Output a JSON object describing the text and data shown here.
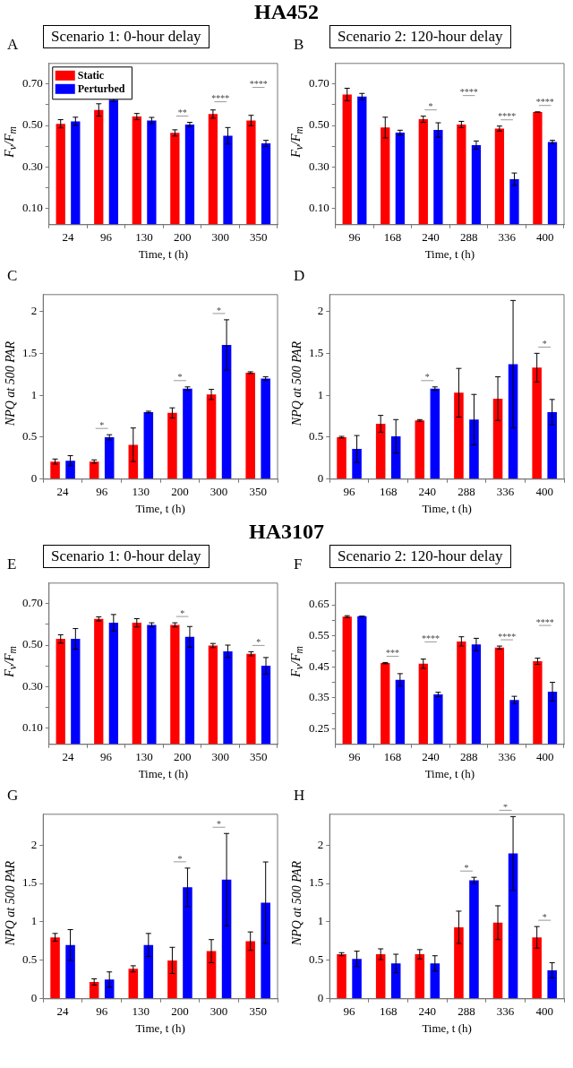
{
  "chart_data": [
    {
      "type": "bar",
      "subtitle": "HA452",
      "title": "Scenario 1: 0-hour delay",
      "xlabel": "Time, t (h)",
      "ylabel": "F$_{v}$/F$_{m}$",
      "legend": "top left",
      "categories": [
        "24",
        "96",
        "130",
        "200",
        "300",
        "350"
      ],
      "series": [
        {
          "name": "Static",
          "color": "#ff0000",
          "values": [
            0.508,
            0.575,
            0.543,
            0.464,
            0.555,
            0.524
          ],
          "errors": [
            0.02,
            0.03,
            0.015,
            0.015,
            0.02,
            0.025
          ]
        },
        {
          "name": "Perturbed",
          "color": "#0000ff",
          "values": [
            0.52,
            0.625,
            0.524,
            0.505,
            0.45,
            0.413
          ],
          "errors": [
            0.02,
            0.01,
            0.015,
            0.01,
            0.04,
            0.015
          ]
        }
      ],
      "ylim": [
        0.02,
        0.8
      ],
      "yticks": [
        {
          "value": 0.1,
          "label": "0.10"
        },
        {
          "value": 0.2,
          "label": null
        },
        {
          "value": 0.3,
          "label": "0.30"
        },
        {
          "value": 0.4,
          "label": null
        },
        {
          "value": 0.5,
          "label": "0.50"
        },
        {
          "value": 0.6,
          "label": null
        },
        {
          "value": 0.7,
          "label": "0.70"
        }
      ],
      "annotations": [
        "A",
        "**",
        "****",
        "****"
      ]
    },
    {
      "type": "bar",
      "title": "Scenario 2: 120-hour delay",
      "xlabel": "Time, t (h)",
      "ylabel": "F$_{v}$/F$_{m}$",
      "categories": [
        "96",
        "168",
        "240",
        "288",
        "336",
        "400"
      ],
      "series": [
        {
          "color": "#ff0000",
          "values": [
            0.65,
            0.49,
            0.53,
            0.505,
            0.485,
            0.565
          ],
          "errors": [
            0.03,
            0.05,
            0.015,
            0.015,
            0.012,
            0
          ]
        },
        {
          "color": "#0000ff",
          "values": [
            0.64,
            0.465,
            0.478,
            0.405,
            0.24,
            0.42
          ],
          "errors": [
            0.015,
            0.012,
            0.035,
            0.02,
            0.03,
            0.008
          ]
        }
      ],
      "ylim": [
        0.02,
        0.8
      ],
      "yticks": [
        {
          "value": 0.1,
          "label": "0.10"
        },
        {
          "value": 0.2,
          "label": null
        },
        {
          "value": 0.3,
          "label": "0.30"
        },
        {
          "value": 0.4,
          "label": null
        },
        {
          "value": 0.5,
          "label": "0.50"
        },
        {
          "value": 0.6,
          "label": null
        },
        {
          "value": 0.7,
          "label": "0.70"
        }
      ],
      "annotations": [
        "B",
        "*",
        "****",
        "****",
        "****"
      ]
    },
    {
      "type": "bar",
      "xlabel": "Time, t (h)",
      "ylabel": "NPQ at 500 PAR",
      "categories": [
        "24",
        "96",
        "130",
        "200",
        "300",
        "350"
      ],
      "series": [
        {
          "color": "#ff0000",
          "values": [
            0.21,
            0.21,
            0.41,
            0.79,
            1.01,
            1.27
          ],
          "errors": [
            0.03,
            0.02,
            0.2,
            0.06,
            0.06,
            0.01
          ]
        },
        {
          "color": "#0000ff",
          "values": [
            0.22,
            0.5,
            0.8,
            1.08,
            1.6,
            1.2
          ],
          "errors": [
            0.06,
            0.03,
            0.01,
            0.02,
            0.3,
            0.02
          ]
        }
      ],
      "ylim": [
        0,
        2.2
      ],
      "yticks": [
        0,
        0.5,
        1,
        1.5,
        2
      ],
      "annotations": [
        "C",
        "*",
        "*",
        "*"
      ]
    },
    {
      "type": "bar",
      "xlabel": "Time, t (h)",
      "ylabel": "NPQ at 500 PAR",
      "categories": [
        "96",
        "168",
        "240",
        "288",
        "336",
        "400"
      ],
      "series": [
        {
          "color": "#ff0000",
          "values": [
            0.5,
            0.66,
            0.7,
            1.03,
            0.96,
            1.33
          ],
          "errors": [
            0.01,
            0.1,
            0.01,
            0.29,
            0.26,
            0.17
          ]
        },
        {
          "color": "#0000ff",
          "values": [
            0.36,
            0.51,
            1.08,
            0.71,
            1.37,
            0.8
          ],
          "errors": [
            0.16,
            0.2,
            0.02,
            0.3,
            0.76,
            0.15
          ]
        }
      ],
      "ylim": [
        0,
        2.2
      ],
      "yticks": [
        0,
        0.5,
        1,
        1.5,
        2
      ],
      "annotations": [
        "D",
        "*",
        "*"
      ]
    },
    {
      "type": "bar",
      "subtitle": "HA3107",
      "title": "Scenario 1: 0-hour delay",
      "xlabel": "Time, t (h)",
      "ylabel": "F$_{v}$/F$_{m}$",
      "categories": [
        "24",
        "96",
        "130",
        "200",
        "300",
        "350"
      ],
      "series": [
        {
          "color": "#ff0000",
          "values": [
            0.53,
            0.627,
            0.608,
            0.598,
            0.498,
            0.458
          ],
          "errors": [
            0.02,
            0.01,
            0.02,
            0.01,
            0.01,
            0.01
          ]
        },
        {
          "color": "#0000ff",
          "values": [
            0.53,
            0.608,
            0.598,
            0.54,
            0.47,
            0.4
          ],
          "errors": [
            0.05,
            0.04,
            0.01,
            0.05,
            0.03,
            0.04
          ]
        }
      ],
      "ylim": [
        0.02,
        0.8
      ],
      "yticks": [
        {
          "value": 0.1,
          "label": "0.10"
        },
        {
          "value": 0.2,
          "label": null
        },
        {
          "value": 0.3,
          "label": "0.30"
        },
        {
          "value": 0.4,
          "label": null
        },
        {
          "value": 0.5,
          "label": "0.50"
        },
        {
          "value": 0.6,
          "label": null
        },
        {
          "value": 0.7,
          "label": "0.70"
        }
      ],
      "annotations": [
        "E",
        "*",
        "*"
      ]
    },
    {
      "type": "bar",
      "title": "Scenario 2: 120-hour delay",
      "xlabel": "Time, t (h)",
      "ylabel": "F$_{v}$/F$_{m}$",
      "categories": [
        "96",
        "168",
        "240",
        "288",
        "336",
        "400"
      ],
      "series": [
        {
          "color": "#ff0000",
          "values": [
            0.612,
            0.462,
            0.46,
            0.532,
            0.512,
            0.468
          ],
          "errors": [
            0.003,
            0.002,
            0.015,
            0.015,
            0.005,
            0.01
          ]
        },
        {
          "color": "#0000ff",
          "values": [
            0.613,
            0.408,
            0.361,
            0.522,
            0.343,
            0.37
          ],
          "errors": [
            0,
            0.02,
            0.007,
            0.02,
            0.012,
            0.03
          ]
        }
      ],
      "ylim": [
        0.2,
        0.72
      ],
      "yticks": [
        0.25,
        {
          "value": 0.3,
          "label": null
        },
        0.35,
        {
          "value": 0.4,
          "label": null
        },
        0.45,
        {
          "value": 0.5,
          "label": null
        },
        0.55,
        {
          "value": 0.6,
          "label": null
        },
        0.65
      ],
      "annotations": [
        "F",
        "***",
        "****",
        "****",
        "****"
      ]
    },
    {
      "type": "bar",
      "xlabel": "Time, t (h)",
      "ylabel": "NPQ at 500 PAR",
      "categories": [
        "24",
        "96",
        "130",
        "200",
        "300",
        "350"
      ],
      "series": [
        {
          "color": "#ff0000",
          "values": [
            0.8,
            0.22,
            0.39,
            0.5,
            0.62,
            0.75
          ],
          "errors": [
            0.05,
            0.04,
            0.04,
            0.17,
            0.15,
            0.12
          ]
        },
        {
          "color": "#0000ff",
          "values": [
            0.7,
            0.25,
            0.7,
            1.45,
            1.55,
            1.25
          ],
          "errors": [
            0.2,
            0.1,
            0.15,
            0.25,
            0.6,
            0.53
          ]
        }
      ],
      "ylim": [
        0,
        2.4
      ],
      "yticks": [
        0,
        0.5,
        1,
        1.5,
        2
      ],
      "annotations": [
        "G",
        "*",
        "*"
      ]
    },
    {
      "type": "bar",
      "xlabel": "Time, t (h)",
      "ylabel": "NPQ at 500 PAR",
      "categories": [
        "96",
        "168",
        "240",
        "288",
        "336",
        "400"
      ],
      "series": [
        {
          "color": "#ff0000",
          "values": [
            0.58,
            0.58,
            0.58,
            0.93,
            0.99,
            0.8
          ],
          "errors": [
            0.02,
            0.07,
            0.06,
            0.21,
            0.22,
            0.14
          ]
        },
        {
          "color": "#0000ff",
          "values": [
            0.52,
            0.46,
            0.46,
            1.54,
            1.89,
            0.37
          ],
          "errors": [
            0.1,
            0.12,
            0.1,
            0.04,
            0.48,
            0.1
          ]
        }
      ],
      "ylim": [
        0,
        2.4
      ],
      "yticks": [
        0,
        0.5,
        1,
        1.5,
        2
      ],
      "annotations": [
        "H",
        "*",
        "*",
        "*"
      ]
    }
  ]
}
